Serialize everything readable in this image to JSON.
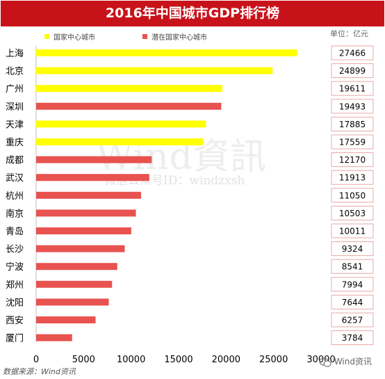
{
  "title": "2016年中国城市GDP排行榜",
  "unit_label": "单位：亿元",
  "source_label": "数据来源：Wind资讯",
  "brand_label": "Wind资讯",
  "watermark": {
    "main": "Wind資訊",
    "sub": "微信公众号ID：windzxsh"
  },
  "colors": {
    "title_bg": "#c8121a",
    "national": "#ffff00",
    "potential": "#e8524f"
  },
  "chart_data": {
    "type": "bar",
    "orientation": "horizontal",
    "xlim": [
      0,
      30000
    ],
    "xticks": [
      0,
      5000,
      10000,
      15000,
      20000,
      25000,
      30000
    ],
    "legend": [
      {
        "name": "国家中心城市",
        "color": "#ffff00"
      },
      {
        "name": "潜在国家中心城市",
        "color": "#e8524f"
      }
    ],
    "legend_position": "top-left",
    "categories": [
      "上海",
      "北京",
      "广州",
      "深圳",
      "天津",
      "重庆",
      "成都",
      "武汉",
      "杭州",
      "南京",
      "青岛",
      "长沙",
      "宁波",
      "郑州",
      "沈阳",
      "西安",
      "厦门"
    ],
    "values": [
      27466,
      24899,
      19611,
      19493,
      17885,
      17559,
      12170,
      11913,
      11050,
      10503,
      10011,
      9324,
      8541,
      7994,
      7644,
      6257,
      3784
    ],
    "groups": [
      "国家中心城市",
      "国家中心城市",
      "国家中心城市",
      "潜在国家中心城市",
      "国家中心城市",
      "国家中心城市",
      "潜在国家中心城市",
      "潜在国家中心城市",
      "潜在国家中心城市",
      "潜在国家中心城市",
      "潜在国家中心城市",
      "潜在国家中心城市",
      "潜在国家中心城市",
      "潜在国家中心城市",
      "潜在国家中心城市",
      "潜在国家中心城市",
      "潜在国家中心城市"
    ]
  }
}
